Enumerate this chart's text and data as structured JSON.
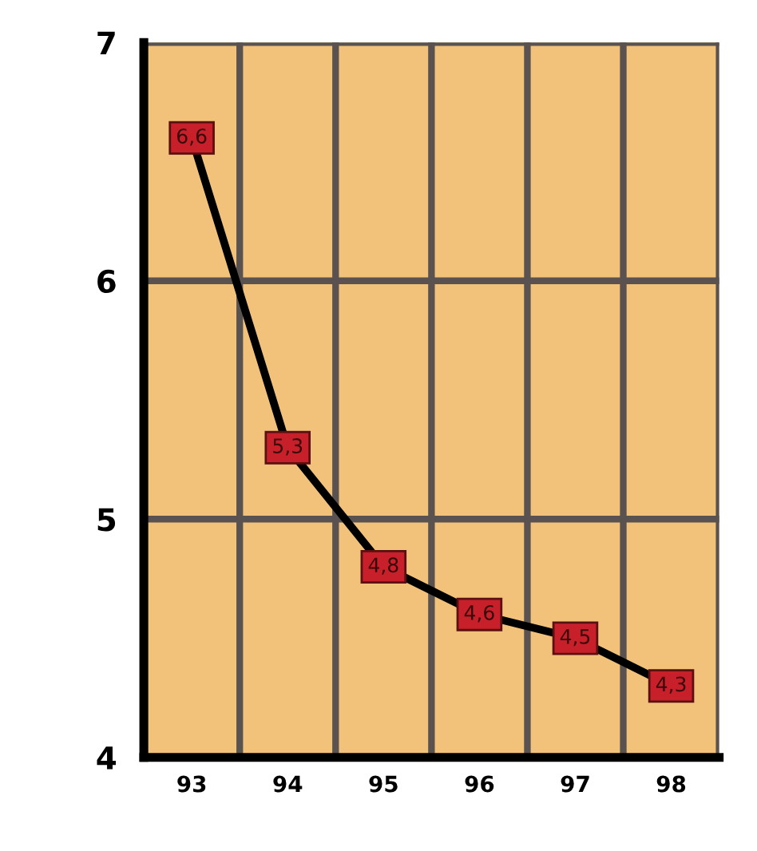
{
  "chart_data": {
    "type": "line",
    "categories": [
      "93",
      "94",
      "95",
      "96",
      "97",
      "98"
    ],
    "series": [
      {
        "color": "#000000",
        "values": [
          6.6,
          5.3,
          4.8,
          4.6,
          4.5,
          4.3
        ],
        "value_labels": [
          "6,6",
          "5,3",
          "4,8",
          "4,6",
          "4,5",
          "4,3"
        ]
      }
    ],
    "ylim": [
      4,
      7
    ],
    "yticks": [
      4,
      5,
      6,
      7
    ],
    "grid": true,
    "marker": "square",
    "line_style": "solid"
  }
}
